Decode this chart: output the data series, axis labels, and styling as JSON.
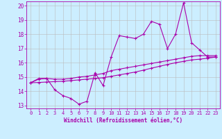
{
  "xlabel": "Windchill (Refroidissement éolien,°C)",
  "background_color": "#cceeff",
  "line_color": "#aa00aa",
  "grid_color": "#bbbbbb",
  "xlim": [
    -0.5,
    23.5
  ],
  "ylim": [
    12.8,
    20.3
  ],
  "yticks": [
    13,
    14,
    15,
    16,
    17,
    18,
    19,
    20
  ],
  "xticks": [
    0,
    1,
    2,
    3,
    4,
    5,
    6,
    7,
    8,
    9,
    10,
    11,
    12,
    13,
    14,
    15,
    16,
    17,
    18,
    19,
    20,
    21,
    22,
    23
  ],
  "line1_x": [
    0,
    1,
    2,
    3,
    4,
    5,
    6,
    7,
    8,
    9,
    10,
    11,
    12,
    13,
    14,
    15,
    16,
    17,
    18,
    19,
    20,
    21,
    22,
    23
  ],
  "line1_y": [
    14.6,
    14.9,
    14.9,
    14.1,
    13.7,
    13.5,
    13.1,
    13.3,
    15.3,
    14.4,
    16.4,
    17.9,
    17.8,
    17.7,
    18.0,
    18.9,
    18.7,
    17.0,
    18.0,
    20.2,
    17.4,
    16.9,
    16.4,
    16.4
  ],
  "line2_x": [
    0,
    1,
    2,
    3,
    4,
    5,
    6,
    7,
    8,
    9,
    10,
    11,
    12,
    13,
    14,
    15,
    16,
    17,
    18,
    19,
    20,
    21,
    22,
    23
  ],
  "line2_y": [
    14.6,
    14.85,
    14.9,
    14.85,
    14.85,
    14.9,
    15.0,
    15.05,
    15.15,
    15.25,
    15.45,
    15.55,
    15.65,
    15.75,
    15.85,
    15.95,
    16.05,
    16.15,
    16.25,
    16.35,
    16.45,
    16.5,
    16.5,
    16.5
  ],
  "line3_x": [
    0,
    1,
    2,
    3,
    4,
    5,
    6,
    7,
    8,
    9,
    10,
    11,
    12,
    13,
    14,
    15,
    16,
    17,
    18,
    19,
    20,
    21,
    22,
    23
  ],
  "line3_y": [
    14.6,
    14.62,
    14.65,
    14.68,
    14.7,
    14.75,
    14.8,
    14.85,
    14.9,
    14.95,
    15.05,
    15.15,
    15.25,
    15.35,
    15.48,
    15.62,
    15.75,
    15.88,
    16.0,
    16.1,
    16.2,
    16.25,
    16.32,
    16.4
  ]
}
